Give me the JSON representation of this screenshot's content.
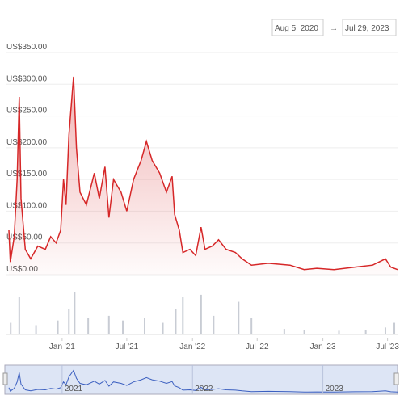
{
  "date_range": {
    "from": "Aug 5, 2020",
    "to": "Jul 29, 2023"
  },
  "chart_data": [
    {
      "type": "line",
      "x": [
        "2020-08-05",
        "2020-08-09",
        "2020-08-20",
        "2020-08-28",
        "2020-09-03",
        "2020-09-08",
        "2020-09-20",
        "2020-10-05",
        "2020-10-25",
        "2020-11-15",
        "2020-11-30",
        "2020-12-15",
        "2020-12-28",
        "2021-01-05",
        "2021-01-12",
        "2021-01-20",
        "2021-02-02",
        "2021-02-10",
        "2021-02-20",
        "2021-03-10",
        "2021-04-01",
        "2021-04-15",
        "2021-05-01",
        "2021-05-12",
        "2021-05-25",
        "2021-06-15",
        "2021-07-01",
        "2021-07-20",
        "2021-08-10",
        "2021-08-25",
        "2021-09-10",
        "2021-10-01",
        "2021-10-20",
        "2021-11-05",
        "2021-11-12",
        "2021-11-25",
        "2021-12-05",
        "2021-12-25",
        "2022-01-10",
        "2022-01-25",
        "2022-02-05",
        "2022-02-25",
        "2022-03-15",
        "2022-04-05",
        "2022-05-01",
        "2022-05-20",
        "2022-06-15",
        "2022-08-01",
        "2022-10-01",
        "2022-11-10",
        "2022-12-15",
        "2023-02-01",
        "2023-04-01",
        "2023-05-20",
        "2023-06-25",
        "2023-07-10",
        "2023-07-29"
      ],
      "series": [
        {
          "color": "#d62728",
          "values": [
            70,
            20,
            60,
            150,
            280,
            120,
            40,
            25,
            45,
            40,
            60,
            50,
            70,
            150,
            110,
            220,
            312,
            200,
            130,
            110,
            160,
            120,
            170,
            90,
            150,
            130,
            100,
            150,
            180,
            210,
            180,
            160,
            130,
            155,
            95,
            70,
            35,
            40,
            30,
            75,
            40,
            45,
            55,
            40,
            35,
            25,
            15,
            18,
            15,
            8,
            10,
            8,
            12,
            15,
            25,
            12,
            8
          ]
        }
      ],
      "xlim": [
        "2020-08-05",
        "2023-07-29"
      ],
      "xticks": [
        {
          "value": "2021-01-01",
          "label": "Jan '21"
        },
        {
          "value": "2021-07-01",
          "label": "Jul '21"
        },
        {
          "value": "2022-01-01",
          "label": "Jan '22"
        },
        {
          "value": "2022-07-01",
          "label": "Jul '22"
        },
        {
          "value": "2023-01-01",
          "label": "Jan '23"
        },
        {
          "value": "2023-07-01",
          "label": "Jul '23"
        }
      ],
      "ylim": [
        0,
        350
      ],
      "yticks": [
        {
          "value": 0,
          "label": "US$0.00"
        },
        {
          "value": 50,
          "label": "US$50.00"
        },
        {
          "value": 100,
          "label": "US$100.00"
        },
        {
          "value": 150,
          "label": "US$150.00"
        },
        {
          "value": 200,
          "label": "US$200.00"
        },
        {
          "value": 250,
          "label": "US$250.00"
        },
        {
          "value": 300,
          "label": "US$300.00"
        },
        {
          "value": 350,
          "label": "US$350.00"
        }
      ],
      "grid": true
    },
    {
      "type": "bar",
      "color": "#c8ccd4",
      "x": [
        "2020-08-10",
        "2020-09-03",
        "2020-10-20",
        "2020-12-20",
        "2021-01-20",
        "2021-02-05",
        "2021-03-15",
        "2021-05-12",
        "2021-06-20",
        "2021-08-20",
        "2021-10-10",
        "2021-11-15",
        "2021-12-05",
        "2022-01-25",
        "2022-03-01",
        "2022-05-10",
        "2022-06-15",
        "2022-09-15",
        "2022-11-10",
        "2023-02-15",
        "2023-05-01",
        "2023-06-25",
        "2023-07-20"
      ],
      "values": [
        25,
        80,
        20,
        30,
        55,
        90,
        35,
        40,
        30,
        35,
        25,
        55,
        80,
        85,
        40,
        70,
        35,
        12,
        10,
        8,
        10,
        15,
        25
      ]
    },
    {
      "type": "navigator",
      "xticks": [
        {
          "value": "2021-01-01",
          "label": "2021"
        },
        {
          "value": "2022-01-01",
          "label": "2022"
        },
        {
          "value": "2023-01-01",
          "label": "2023"
        }
      ]
    }
  ]
}
